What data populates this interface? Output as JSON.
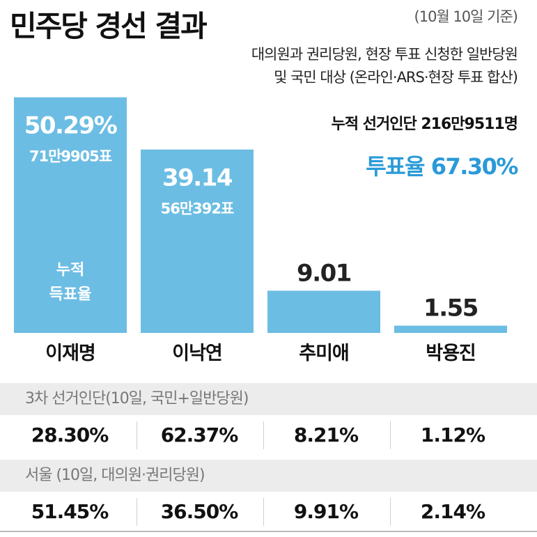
{
  "header": {
    "title": "민주당 경선 결과",
    "as_of": "(10월 10일 기준)",
    "note_lines": [
      "대의원과 권리당원, 현장 투표 신청한 일반당원",
      "및 국민 대상 (온라인·ARS·현장 투표 합산)"
    ],
    "cumulative": "누적 선거인단 216만9511명",
    "turnout": "투표율 67.30%"
  },
  "colors": {
    "bar": "#6cbde3",
    "accent": "#2a9ad8",
    "band": "#ececec"
  },
  "chart_data": {
    "type": "bar",
    "categories": [
      "이재명",
      "이낙연",
      "추미애",
      "박용진"
    ],
    "values": [
      50.29,
      39.14,
      9.01,
      1.55
    ],
    "value_labels": [
      "50.29%",
      "39.14",
      "9.01",
      "1.55"
    ],
    "vote_labels": [
      "71만9905표",
      "56만392표",
      "",
      ""
    ],
    "inner_label": [
      "누적",
      "득표율"
    ],
    "ylim": [
      0,
      55
    ]
  },
  "tables": [
    {
      "heading": "3차 선거인단(10일, 국민+일반당원)",
      "values": [
        "28.30%",
        "62.37%",
        "8.21%",
        "1.12%"
      ]
    },
    {
      "heading": "서울 (10일, 대의원·권리당원)",
      "values": [
        "51.45%",
        "36.50%",
        "9.91%",
        "2.14%"
      ]
    }
  ]
}
